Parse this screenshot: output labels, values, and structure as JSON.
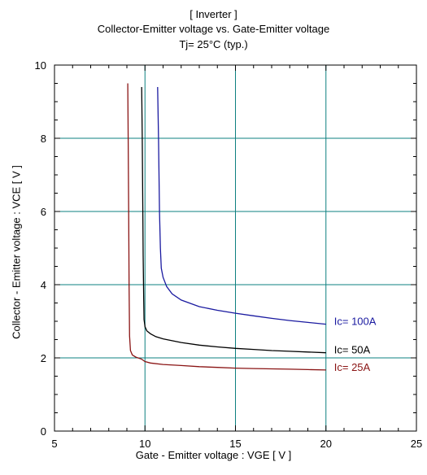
{
  "chart_data": {
    "type": "line",
    "title": [
      "[ Inverter ]",
      "Collector-Emitter voltage  vs. Gate-Emitter voltage",
      "Tj= 25°C  (typ.)"
    ],
    "xlabel": "Gate - Emitter voltage  :  VGE  [ V ]",
    "ylabel": "Collector - Emitter voltage  :  VCE  [ V ]",
    "xlim": [
      5,
      25
    ],
    "ylim": [
      0,
      10
    ],
    "x_ticks": [
      5,
      10,
      15,
      20,
      25
    ],
    "y_ticks": [
      0,
      2,
      4,
      6,
      8,
      10
    ],
    "grid": true,
    "series": [
      {
        "name": "Ic= 100A",
        "color": "#1a1aa0",
        "x": [
          10.7,
          10.75,
          10.8,
          10.85,
          10.9,
          11.0,
          11.2,
          11.5,
          12.0,
          13.0,
          14.0,
          15.0,
          16.0,
          17.0,
          18.0,
          19.0,
          20.0
        ],
        "y": [
          9.4,
          8.0,
          6.0,
          5.0,
          4.45,
          4.2,
          3.95,
          3.75,
          3.58,
          3.4,
          3.3,
          3.22,
          3.15,
          3.08,
          3.02,
          2.97,
          2.92
        ]
      },
      {
        "name": "Ic= 50A",
        "color": "#000000",
        "x": [
          9.82,
          9.85,
          9.88,
          9.9,
          9.93,
          9.95,
          10.0,
          10.1,
          10.3,
          10.6,
          11.0,
          12.0,
          13.0,
          14.0,
          15.0,
          16.0,
          17.0,
          18.0,
          19.0,
          20.0
        ],
        "y": [
          9.4,
          8.0,
          6.0,
          4.8,
          3.6,
          3.05,
          2.85,
          2.74,
          2.66,
          2.58,
          2.52,
          2.42,
          2.35,
          2.3,
          2.26,
          2.23,
          2.2,
          2.18,
          2.16,
          2.14
        ]
      },
      {
        "name": "Ic= 25A",
        "color": "#8a1414",
        "x": [
          9.05,
          9.07,
          9.1,
          9.12,
          9.15,
          9.2,
          9.3,
          9.5,
          9.8,
          10.0,
          10.3,
          11.0,
          12.0,
          13.0,
          14.0,
          15.0,
          16.0,
          17.0,
          18.0,
          19.0,
          20.0
        ],
        "y": [
          9.5,
          8.0,
          6.0,
          4.0,
          2.6,
          2.2,
          2.08,
          2.02,
          1.97,
          1.9,
          1.86,
          1.82,
          1.79,
          1.76,
          1.74,
          1.72,
          1.71,
          1.7,
          1.69,
          1.68,
          1.67
        ]
      }
    ],
    "grid_color": "#0e8080"
  }
}
